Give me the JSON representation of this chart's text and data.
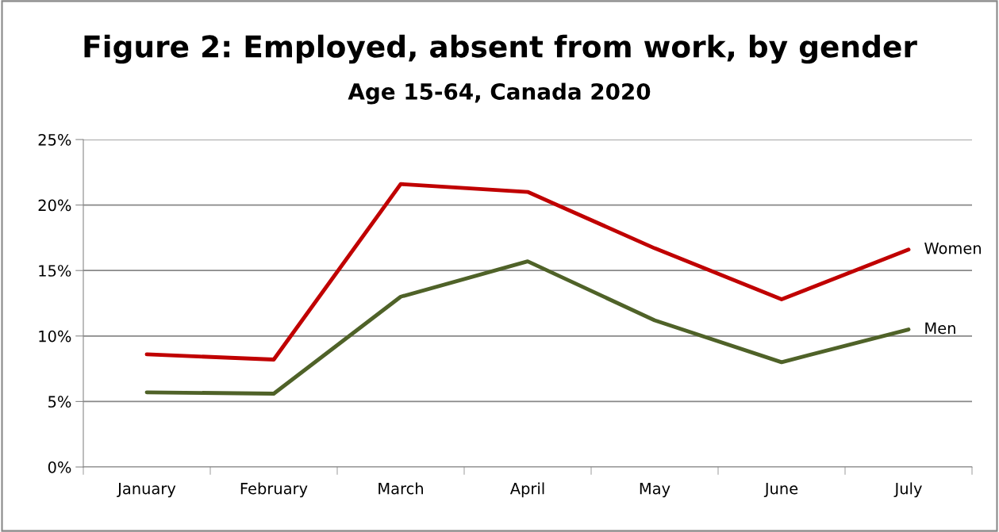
{
  "chart_data": {
    "type": "line",
    "title": "Figure 2: Employed, absent from work, by gender",
    "subtitle": "Age 15-64, Canada 2020",
    "categories": [
      "January",
      "February",
      "March",
      "April",
      "May",
      "June",
      "July"
    ],
    "series": [
      {
        "name": "Women",
        "color": "#c00000",
        "values": [
          8.6,
          8.2,
          21.6,
          21.0,
          16.7,
          12.8,
          16.6
        ]
      },
      {
        "name": "Men",
        "color": "#4f6228",
        "values": [
          5.7,
          5.6,
          13.0,
          15.7,
          11.2,
          8.0,
          10.5
        ]
      }
    ],
    "ylim": [
      0,
      25
    ],
    "yticks": [
      {
        "value": 0,
        "label": "0%"
      },
      {
        "value": 5,
        "label": "5%"
      },
      {
        "value": 10,
        "label": "10%"
      },
      {
        "value": 15,
        "label": "15%"
      },
      {
        "value": 20,
        "label": "20%"
      },
      {
        "value": 25,
        "label": "25%"
      }
    ],
    "grid": "y",
    "legend": false,
    "marker": "none",
    "line_style": "solid"
  }
}
